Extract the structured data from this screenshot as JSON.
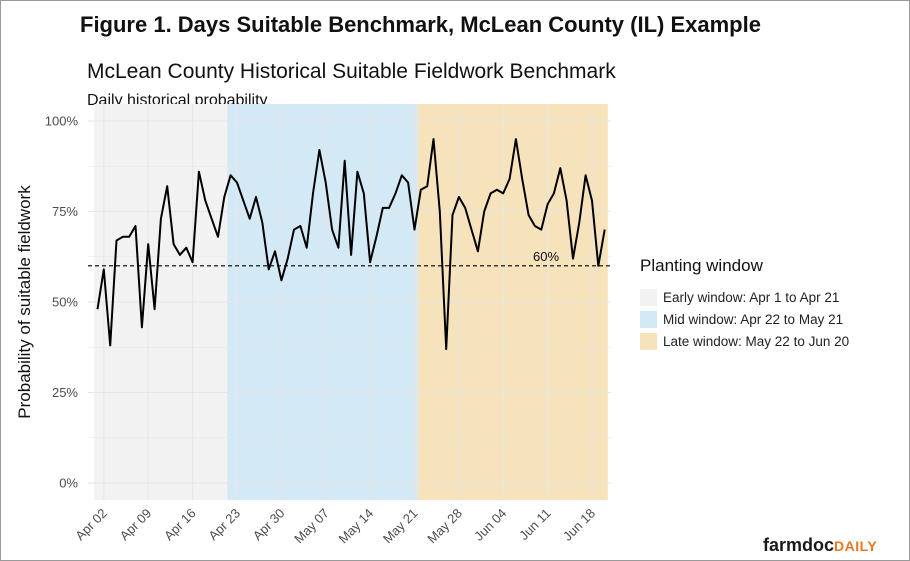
{
  "figure_title": "Figure 1. Days Suitable Benchmark, McLean County (IL) Example",
  "brand": {
    "part1": "farmdoc",
    "part2": "DAILY"
  },
  "colors": {
    "early": "#f2f2f2",
    "mid": "#d4e9f6",
    "late": "#f6e3bb",
    "line": "#000000",
    "grid": "#e6e6e6"
  },
  "chart_data": {
    "type": "line",
    "title": "McLean County Historical Suitable Fieldwork Benchmark",
    "subtitle": "Daily historical probability",
    "ylabel": "Probability of suitable fieldwork",
    "xlabel": "",
    "ylim": [
      0,
      1
    ],
    "xlim": [
      "2021-03-31",
      "2021-06-21"
    ],
    "y_ticks": [
      0,
      0.25,
      0.5,
      0.75,
      1.0
    ],
    "y_tick_labels": [
      "0%",
      "25%",
      "50%",
      "75%",
      "100%"
    ],
    "x_ticks": [
      "2021-04-02",
      "2021-04-09",
      "2021-04-16",
      "2021-04-23",
      "2021-04-30",
      "2021-05-07",
      "2021-05-14",
      "2021-05-21",
      "2021-05-28",
      "2021-06-04",
      "2021-06-11",
      "2021-06-18"
    ],
    "x_tick_labels": [
      "Apr 02",
      "Apr 09",
      "Apr 16",
      "Apr 23",
      "Apr 30",
      "May 07",
      "May 14",
      "May 21",
      "May 28",
      "Jun 04",
      "Jun 11",
      "Jun 18"
    ],
    "grid": true,
    "reference_line": {
      "y": 0.6,
      "label": "60%",
      "style": "dashed"
    },
    "legend": {
      "title": "Planting window",
      "position": "right",
      "items": [
        {
          "label": "Early window: Apr 1 to Apr 21",
          "start": "2021-04-01",
          "end": "2021-04-21",
          "color": "#f2f2f2"
        },
        {
          "label": "Mid window: Apr 22 to May 21",
          "start": "2021-04-22",
          "end": "2021-05-21",
          "color": "#d4e9f6"
        },
        {
          "label": "Late window: May 22 to Jun 20",
          "start": "2021-05-22",
          "end": "2021-06-20",
          "color": "#f6e3bb"
        }
      ]
    },
    "series": [
      {
        "x": [
          "2021-04-01",
          "2021-04-02",
          "2021-04-03",
          "2021-04-04",
          "2021-04-05",
          "2021-04-06",
          "2021-04-07",
          "2021-04-08",
          "2021-04-09",
          "2021-04-10",
          "2021-04-11",
          "2021-04-12",
          "2021-04-13",
          "2021-04-14",
          "2021-04-15",
          "2021-04-16",
          "2021-04-17",
          "2021-04-18",
          "2021-04-19",
          "2021-04-20",
          "2021-04-21",
          "2021-04-22",
          "2021-04-23",
          "2021-04-24",
          "2021-04-25",
          "2021-04-26",
          "2021-04-27",
          "2021-04-28",
          "2021-04-29",
          "2021-04-30",
          "2021-05-01",
          "2021-05-02",
          "2021-05-03",
          "2021-05-04",
          "2021-05-05",
          "2021-05-06",
          "2021-05-07",
          "2021-05-08",
          "2021-05-09",
          "2021-05-10",
          "2021-05-11",
          "2021-05-12",
          "2021-05-13",
          "2021-05-14",
          "2021-05-15",
          "2021-05-16",
          "2021-05-17",
          "2021-05-18",
          "2021-05-19",
          "2021-05-20",
          "2021-05-21",
          "2021-05-22",
          "2021-05-23",
          "2021-05-24",
          "2021-05-25",
          "2021-05-26",
          "2021-05-27",
          "2021-05-28",
          "2021-05-29",
          "2021-05-30",
          "2021-05-31",
          "2021-06-01",
          "2021-06-02",
          "2021-06-03",
          "2021-06-04",
          "2021-06-05",
          "2021-06-06",
          "2021-06-07",
          "2021-06-08",
          "2021-06-09",
          "2021-06-10",
          "2021-06-11",
          "2021-06-12",
          "2021-06-13",
          "2021-06-14",
          "2021-06-15",
          "2021-06-16",
          "2021-06-17",
          "2021-06-18",
          "2021-06-19",
          "2021-06-20"
        ],
        "values": [
          0.48,
          0.59,
          0.38,
          0.67,
          0.68,
          0.68,
          0.71,
          0.43,
          0.66,
          0.48,
          0.73,
          0.82,
          0.66,
          0.63,
          0.65,
          0.61,
          0.86,
          0.78,
          0.73,
          0.68,
          0.79,
          0.85,
          0.83,
          0.78,
          0.73,
          0.79,
          0.72,
          0.59,
          0.64,
          0.56,
          0.62,
          0.7,
          0.71,
          0.65,
          0.8,
          0.92,
          0.83,
          0.7,
          0.65,
          0.89,
          0.63,
          0.86,
          0.8,
          0.61,
          0.68,
          0.76,
          0.76,
          0.8,
          0.85,
          0.83,
          0.7,
          0.81,
          0.82,
          0.95,
          0.75,
          0.37,
          0.74,
          0.79,
          0.76,
          0.7,
          0.64,
          0.75,
          0.8,
          0.81,
          0.8,
          0.84,
          0.95,
          0.84,
          0.74,
          0.71,
          0.7,
          0.77,
          0.8,
          0.87,
          0.78,
          0.62,
          0.72,
          0.85,
          0.78,
          0.6,
          0.7
        ]
      }
    ]
  }
}
